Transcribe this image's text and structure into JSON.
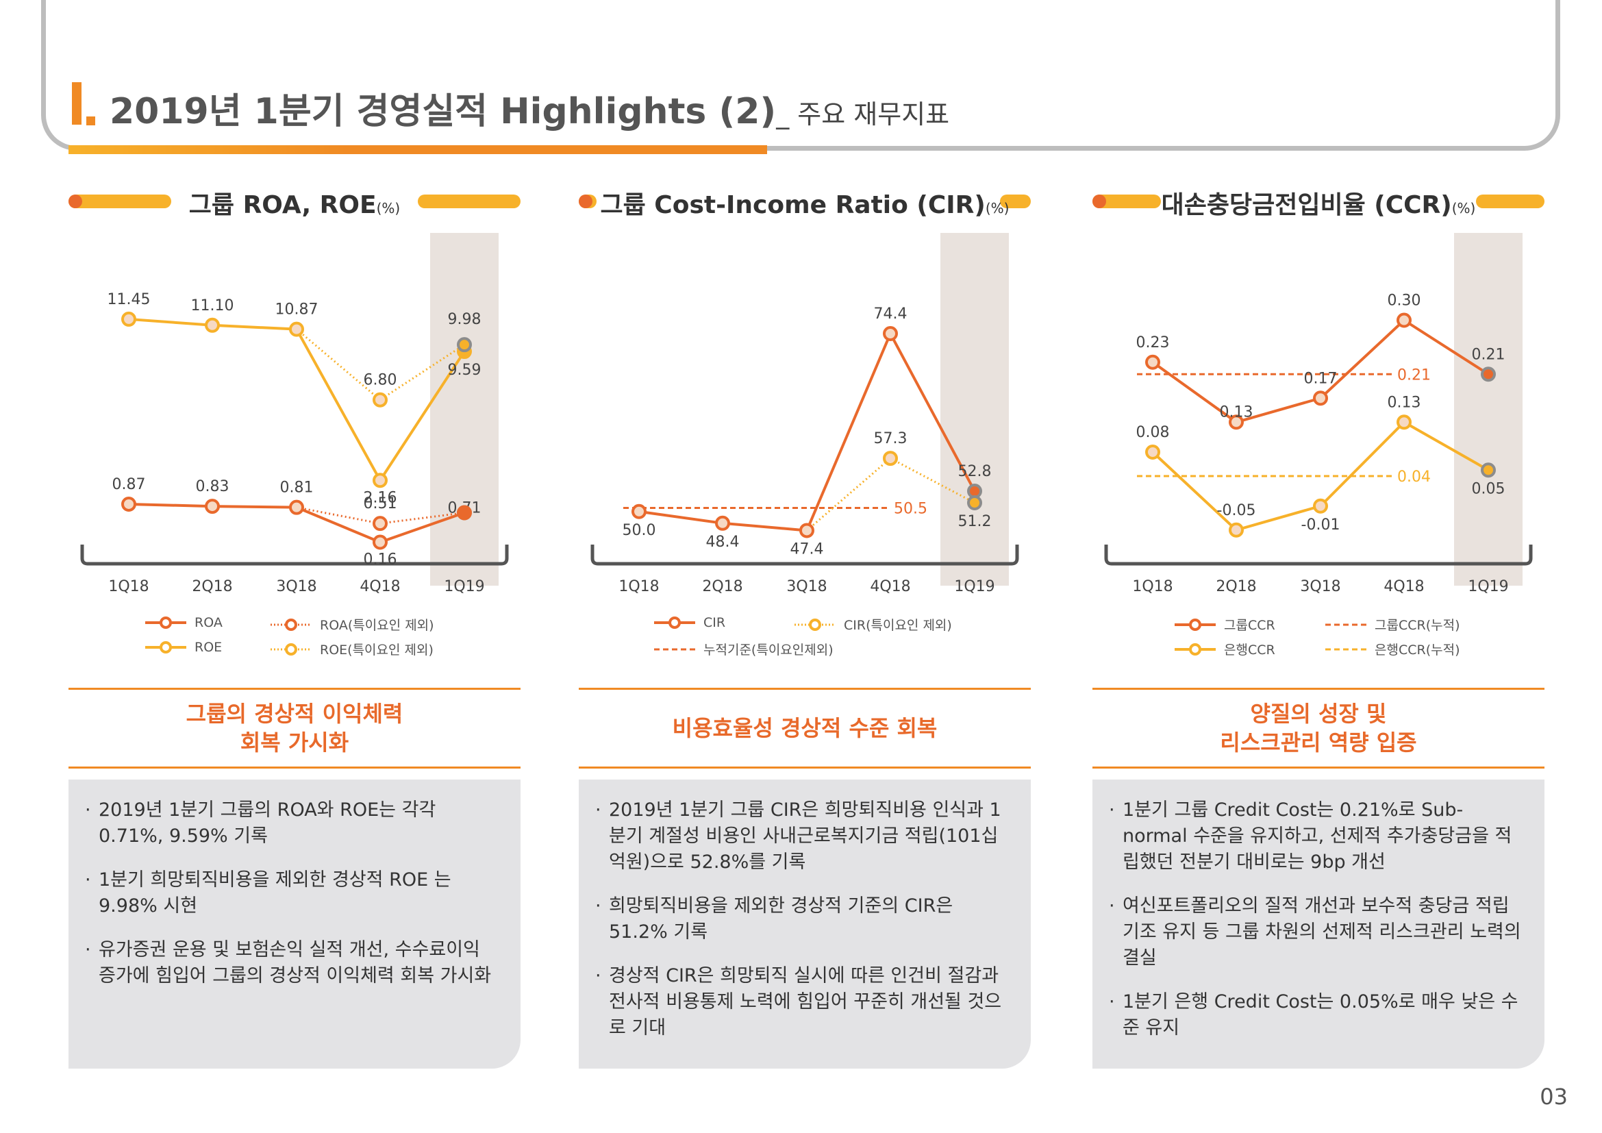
{
  "page": {
    "title": "2019년 1분기 경영실적 Highlights (2)",
    "subtitle": "_ 주요 재무지표",
    "page_number": "03"
  },
  "colors": {
    "orange": "#e9692c",
    "yellow": "#f7b12a",
    "gray_marker": "#8c8c8c",
    "highlight_band": "#e9e2dd",
    "box_bg": "#e3e3e5"
  },
  "panels": [
    {
      "title": "그룹 ROA, ROE",
      "unit": "(%)",
      "legend": [
        "ROA",
        "ROA(특이요인 제외)",
        "ROE",
        "ROE(특이요인 제외)"
      ],
      "kpi": "그룹의 경상적 이익체력\n회복 가시화",
      "bullets": [
        "2019년 1분기 그룹의 ROA와 ROE는 각각 0.71%, 9.59% 기록",
        "1분기 희망퇴직비용을 제외한 경상적 ROE 는 9.98% 시현",
        "유가증권 운용 및 보험손익 실적 개선, 수수료이익 증가에 힘입어 그룹의 경상적 이익체력 회복 가시화"
      ]
    },
    {
      "title": "그룹 Cost-Income Ratio (CIR)",
      "unit": "(%)",
      "legend": [
        "CIR",
        "CIR(특이요인 제외)",
        "누적기준(특이요인제외)"
      ],
      "kpi": "비용효율성 경상적 수준 회복",
      "bullets": [
        "2019년 1분기 그룹 CIR은 희망퇴직비용 인식과 1분기 계절성 비용인 사내근로복지기금 적립(101십억원)으로 52.8%를 기록",
        "희망퇴직비용을 제외한 경상적 기준의 CIR은 51.2% 기록",
        "경상적 CIR은 희망퇴직 실시에 따른 인건비 절감과 전사적 비용통제 노력에 힘입어 꾸준히 개선될 것으로 기대"
      ]
    },
    {
      "title": "대손충당금전입비율 (CCR)",
      "unit": "(%)",
      "legend": [
        "그룹CCR",
        "그룹CCR(누적)",
        "은행CCR",
        "은행CCR(누적)"
      ],
      "kpi": "양질의 성장 및\n리스크관리 역량 입증",
      "bullets": [
        "1분기 그룹 Credit Cost는 0.21%로 Sub-normal 수준을 유지하고, 선제적 추가충당금을 적립했던 전분기 대비로는 9bp 개선",
        "여신포트폴리오의 질적 개선과 보수적 충당금 적립 기조 유지 등 그룹 차원의 선제적 리스크관리 노력의 결실",
        "1분기 은행 Credit Cost는 0.05%로 매우 낮은 수준 유지"
      ]
    }
  ],
  "chart_data": [
    {
      "type": "line",
      "categories": [
        "1Q18",
        "2Q18",
        "3Q18",
        "4Q18",
        "1Q19"
      ],
      "highlight_category": "1Q19",
      "series": [
        {
          "name": "ROE",
          "values": [
            11.45,
            11.1,
            10.87,
            2.16,
            9.59
          ],
          "labels": [
            "11.45",
            "11.10",
            "10.87",
            "2.16",
            "9.59"
          ]
        },
        {
          "name": "ROE(특이요인 제외)",
          "values": [
            null,
            null,
            10.87,
            6.8,
            9.98
          ],
          "labels": [
            "",
            "",
            "",
            "6.80",
            "9.98"
          ]
        },
        {
          "name": "ROA",
          "values": [
            0.87,
            0.83,
            0.81,
            0.16,
            0.71
          ],
          "labels": [
            "0.87",
            "0.83",
            "0.81",
            "0.16",
            "0.71"
          ]
        },
        {
          "name": "ROA(특이요인 제외)",
          "values": [
            null,
            null,
            0.81,
            0.51,
            0.71
          ],
          "labels": [
            "",
            "",
            "",
            "0.51",
            ""
          ]
        }
      ]
    },
    {
      "type": "line",
      "categories": [
        "1Q18",
        "2Q18",
        "3Q18",
        "4Q18",
        "1Q19"
      ],
      "highlight_category": "1Q19",
      "series": [
        {
          "name": "CIR",
          "values": [
            50.0,
            48.4,
            47.4,
            74.4,
            52.8
          ],
          "labels": [
            "50.0",
            "48.4",
            "47.4",
            "74.4",
            "52.8"
          ]
        },
        {
          "name": "CIR(특이요인 제외)",
          "values": [
            null,
            null,
            47.4,
            57.3,
            51.2
          ],
          "labels": [
            "",
            "",
            "",
            "57.3",
            "51.2"
          ]
        }
      ],
      "reference_lines": [
        {
          "name": "누적기준(특이요인제외)",
          "value": 50.5,
          "label": "50.5"
        }
      ]
    },
    {
      "type": "line",
      "categories": [
        "1Q18",
        "2Q18",
        "3Q18",
        "4Q18",
        "1Q19"
      ],
      "highlight_category": "1Q19",
      "series": [
        {
          "name": "그룹CCR",
          "values": [
            0.23,
            0.13,
            0.17,
            0.3,
            0.21
          ],
          "labels": [
            "0.23",
            "0.13",
            "0.17",
            "0.30",
            "0.21"
          ]
        },
        {
          "name": "은행CCR",
          "values": [
            0.08,
            -0.05,
            -0.01,
            0.13,
            0.05
          ],
          "labels": [
            "0.08",
            "-0.05",
            "-0.01",
            "0.13",
            "0.05"
          ]
        }
      ],
      "reference_lines": [
        {
          "name": "그룹CCR(누적)",
          "value": 0.21,
          "label": "0.21"
        },
        {
          "name": "은행CCR(누적)",
          "value": 0.04,
          "label": "0.04"
        }
      ]
    }
  ]
}
